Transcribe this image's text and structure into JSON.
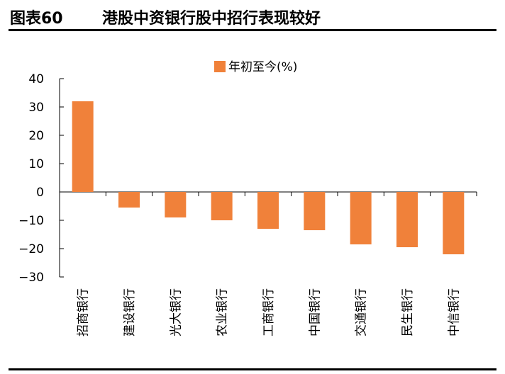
{
  "header": {
    "figure_label": "图表60",
    "title": "港股中资银行股中招行表现较好"
  },
  "chart_data": {
    "type": "bar",
    "categories": [
      "招商银行",
      "建设银行",
      "光大银行",
      "农业银行",
      "工商银行",
      "中国银行",
      "交通银行",
      "民生银行",
      "中信银行"
    ],
    "series": [
      {
        "name": "年初至今(%)",
        "values": [
          32,
          -5.5,
          -9,
          -10,
          -13,
          -13.5,
          -18.5,
          -19.5,
          -22
        ]
      }
    ],
    "ylim": [
      -30,
      40
    ],
    "yticks": [
      40,
      30,
      20,
      10,
      0,
      -10,
      -20,
      -30
    ],
    "ytick_labels": [
      "40",
      "30",
      "20",
      "10",
      "0",
      "−10",
      "−20",
      "−30"
    ],
    "legend_position": "top-center",
    "grid": false,
    "color": "#F0813A"
  }
}
